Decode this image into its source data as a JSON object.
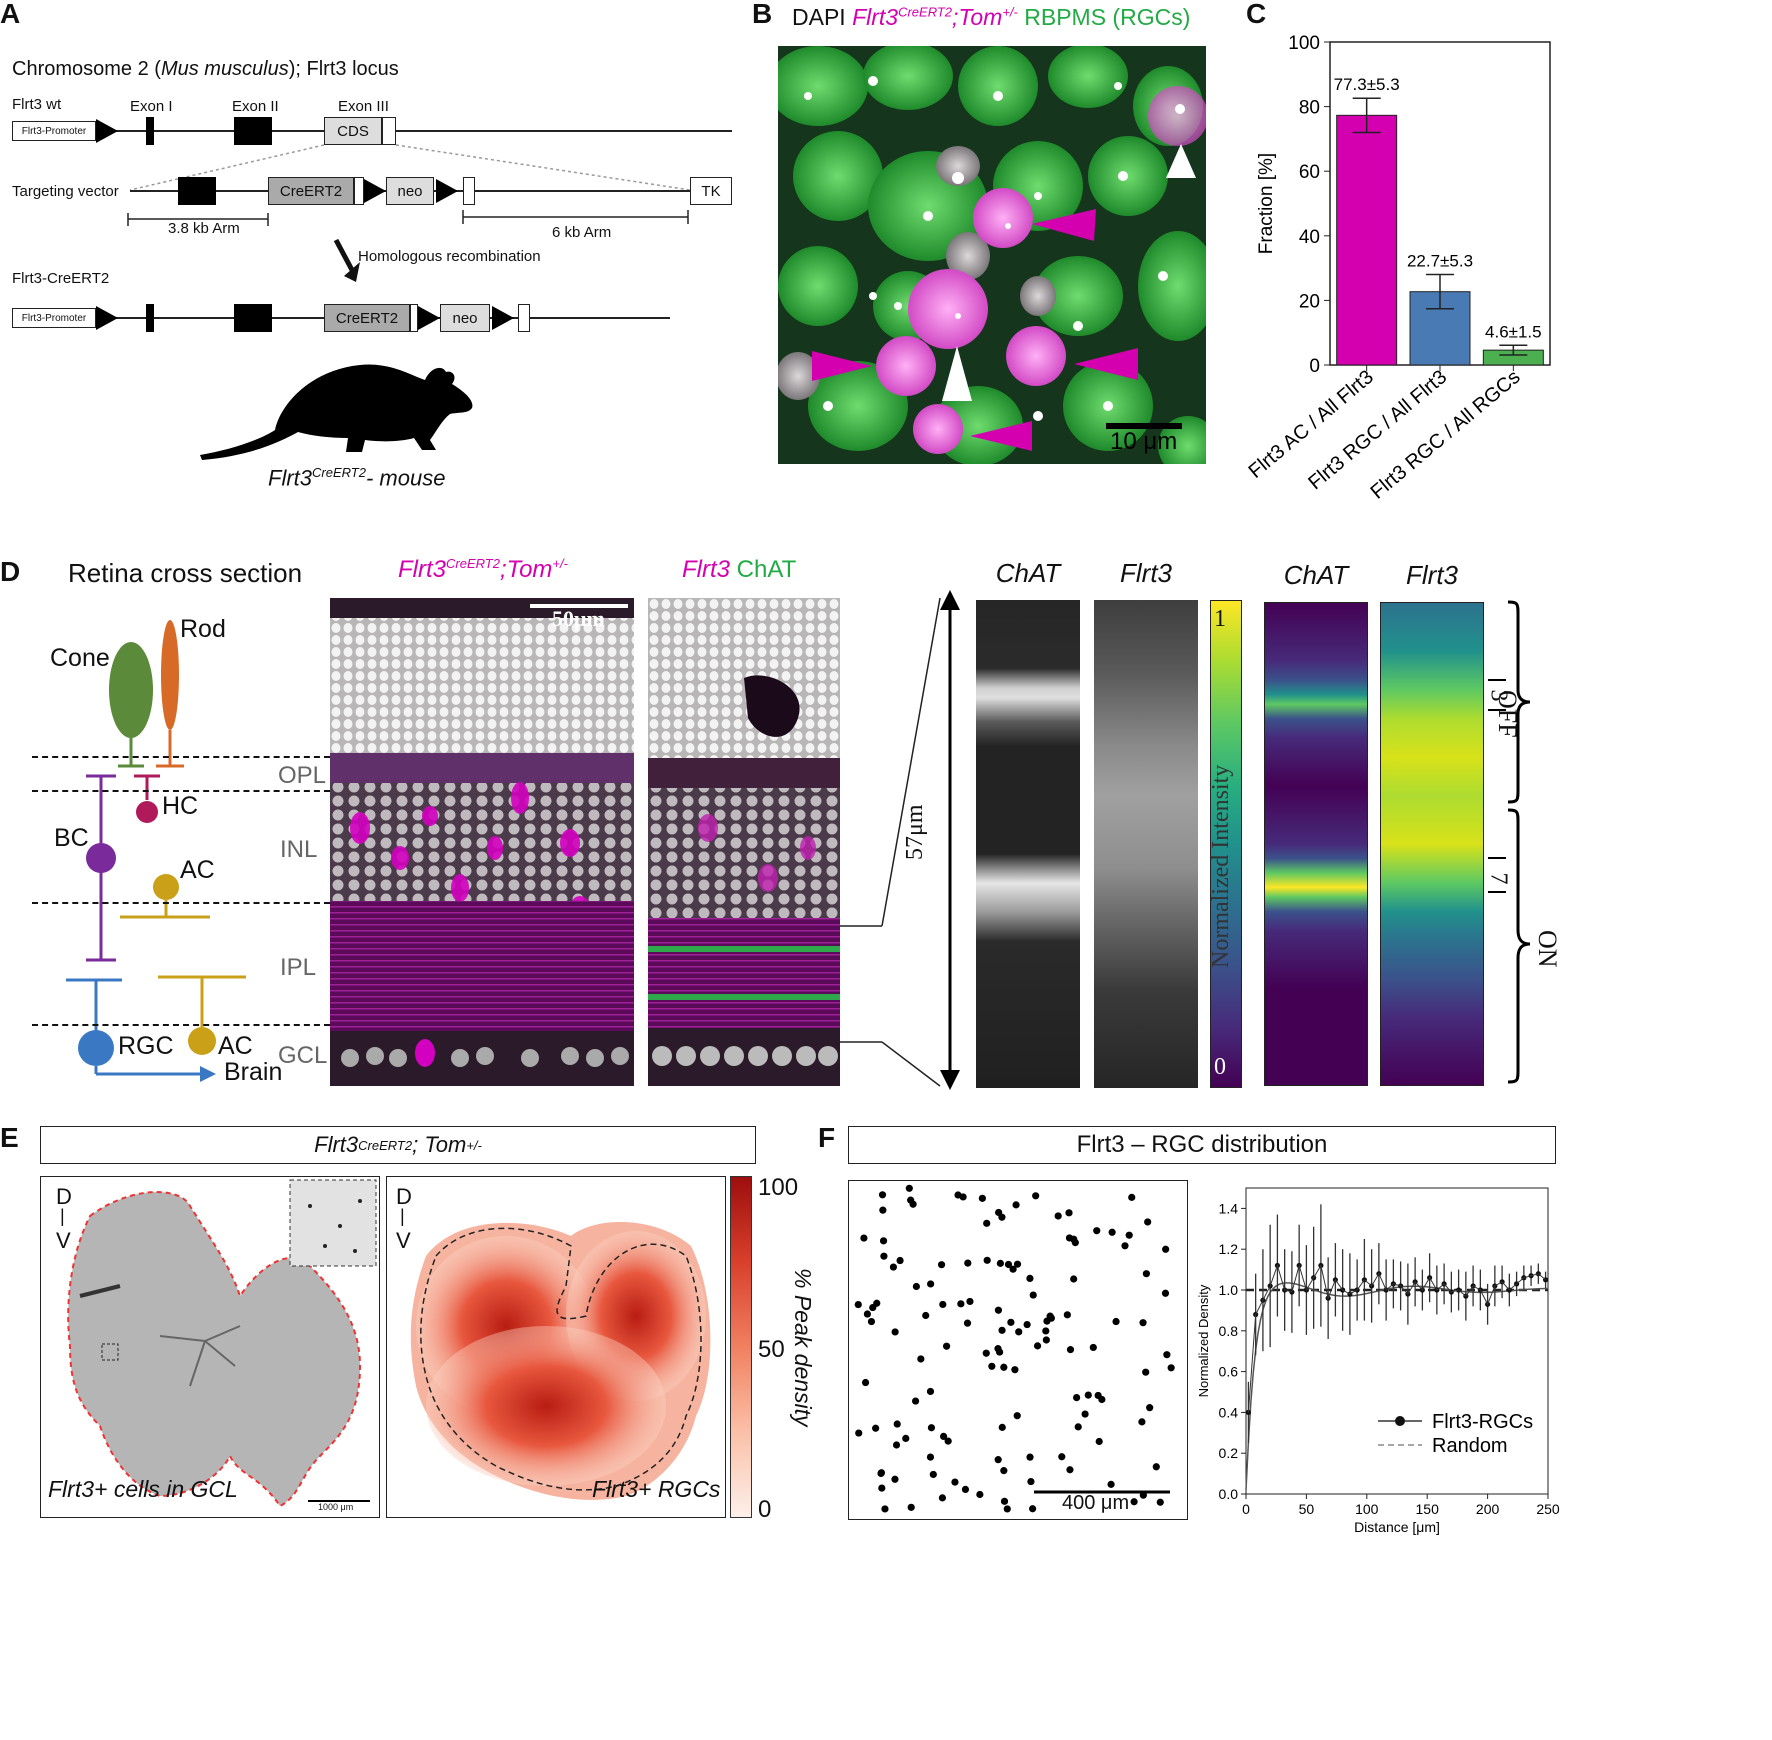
{
  "panels": {
    "A": "A",
    "B": "B",
    "C": "C",
    "D": "D",
    "E": "E",
    "F": "F"
  },
  "panelA": {
    "title_prefix": "Chromosome 2 (",
    "title_species": "Mus musculus",
    "title_suffix": "); Flrt3 locus",
    "wt_label": "Flrt3 wt",
    "promoter": "Flrt3-Promoter",
    "exon1": "Exon I",
    "exon2": "Exon II",
    "exon3": "Exon III",
    "cds": "CDS",
    "targeting_label": "Targeting vector",
    "creert2": "CreERT2",
    "neo": "neo",
    "tk": "TK",
    "arm_left": "3.8 kb Arm",
    "arm_right": "6 kb Arm",
    "recombination": "Homologous recombination",
    "allele_label": "Flrt3-CreERT2",
    "mouse_gene": "Flrt3",
    "mouse_sup": "CreERT2",
    "mouse_suffix": "- mouse"
  },
  "panelB": {
    "dapi": "DAPI",
    "gene": "Flrt3",
    "gene_sup": "CreERT2",
    "tom": ";Tom",
    "tom_sup": "+/-",
    "rbpms": "RBPMS (RGCs)",
    "scale": "10 μm"
  },
  "panelD": {
    "title": "Retina cross section",
    "cone": "Cone",
    "rod": "Rod",
    "hc": "HC",
    "bc": "BC",
    "ac1": "AC",
    "ac2": "AC",
    "rgc": "RGC",
    "brain": "Brain",
    "layers": [
      "OPL",
      "INL",
      "IPL",
      "GCL"
    ],
    "img1_gene": "Flrt3",
    "img1_sup": "CreERT2",
    "img1_tom": ";Tom",
    "img1_tom_sup": "+/-",
    "img2_gene": "Flrt3",
    "img2_chat": "ChAT",
    "scale": "50μm",
    "height": "57μm",
    "stripe_chat": "ChAT",
    "stripe_flrt3": "Flrt3",
    "colorbar_label": "Normalized Intensity",
    "cb_max": "1",
    "cb_min": "0",
    "heat_chat": "ChAT",
    "heat_flrt3": "Flrt3",
    "marker3": "3",
    "marker7": "7",
    "off": "OFF",
    "on": "ON"
  },
  "panelE": {
    "title_gene": "Flrt3",
    "title_sup": "CreERT2",
    "title_tom": "; Tom",
    "title_tom_sup": "+/-",
    "d1": "D",
    "v1": "V",
    "d2": "D",
    "v2": "V",
    "left_caption": "Flrt3+ cells in GCL",
    "right_caption": "Flrt3+ RGCs",
    "scale": "1000 μm",
    "cb_label": "% Peak density",
    "cb_ticks": [
      "100",
      "50",
      "0"
    ]
  },
  "panelF": {
    "title": "Flrt3 – RGC distribution",
    "scale": "400 μm"
  },
  "chart_data": [
    {
      "type": "bar",
      "panel": "C",
      "categories": [
        "Flrt3 AC / All Flrt3",
        "Flrt3 RGC / All Flrt3",
        "Flrt3 RGC / All RGCs"
      ],
      "values": [
        77.3,
        22.7,
        4.6
      ],
      "errors": [
        5.3,
        5.3,
        1.5
      ],
      "value_labels": [
        "77.3±5.3",
        "22.7±5.3",
        "4.6±1.5"
      ],
      "colors": [
        "#d400b0",
        "#4a7ab3",
        "#4caf50"
      ],
      "ylabel": "Fraction [%]",
      "ylim": [
        0,
        100
      ],
      "yticks": [
        "0",
        "20",
        "40",
        "60",
        "80",
        "100"
      ]
    },
    {
      "type": "line",
      "panel": "F",
      "xlabel": "Distance [μm]",
      "ylabel": "Normalized Density",
      "xlim": [
        0,
        250
      ],
      "ylim": [
        0,
        1.5
      ],
      "xticks": [
        "0",
        "50",
        "100",
        "150",
        "200",
        "250"
      ],
      "yticks": [
        "0.0",
        "0.2",
        "0.4",
        "0.6",
        "0.8",
        "1.0",
        "1.2",
        "1.4"
      ],
      "series": [
        {
          "name": "Flrt3-RGCs",
          "x": [
            2,
            8,
            14,
            20,
            26,
            32,
            38,
            44,
            50,
            56,
            62,
            68,
            74,
            80,
            86,
            92,
            98,
            104,
            110,
            116,
            122,
            128,
            134,
            140,
            146,
            152,
            158,
            164,
            170,
            176,
            182,
            188,
            194,
            200,
            206,
            212,
            218,
            224,
            230,
            236,
            242,
            248
          ],
          "y": [
            0.4,
            0.88,
            0.95,
            1.02,
            1.12,
            1.0,
            0.99,
            1.12,
            1.0,
            1.06,
            1.12,
            0.96,
            1.05,
            1.0,
            0.98,
            1.0,
            1.05,
            1.02,
            1.08,
            1.0,
            1.03,
            1.02,
            0.98,
            1.04,
            1.0,
            1.06,
            1.0,
            1.03,
            0.99,
            1.0,
            0.97,
            1.02,
            1.0,
            0.93,
            1.02,
            1.04,
            1.0,
            1.03,
            1.06,
            1.07,
            1.08,
            1.05
          ],
          "err": [
            0.15,
            0.2,
            0.25,
            0.3,
            0.25,
            0.2,
            0.2,
            0.2,
            0.22,
            0.25,
            0.3,
            0.2,
            0.18,
            0.2,
            0.2,
            0.15,
            0.2,
            0.18,
            0.15,
            0.15,
            0.12,
            0.12,
            0.15,
            0.12,
            0.1,
            0.12,
            0.12,
            0.1,
            0.1,
            0.1,
            0.12,
            0.1,
            0.1,
            0.1,
            0.1,
            0.08,
            0.08,
            0.06,
            0.06,
            0.05,
            0.05,
            0.04
          ]
        },
        {
          "name": "Random",
          "x": [
            0,
            250
          ],
          "y": [
            1.0,
            1.0
          ]
        }
      ]
    }
  ]
}
